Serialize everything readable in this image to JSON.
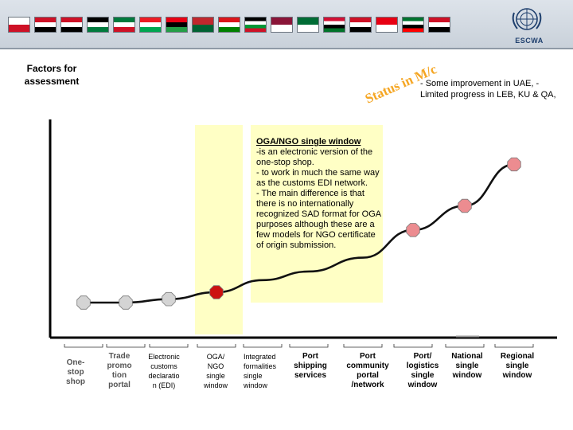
{
  "header": {
    "org_name": "ESCWA",
    "flags": [
      {
        "name": "bahrain",
        "colors": [
          "#ffffff",
          "#ce1126"
        ]
      },
      {
        "name": "egypt",
        "colors": [
          "#ce1126",
          "#ffffff",
          "#000000"
        ]
      },
      {
        "name": "iraq",
        "colors": [
          "#ce1126",
          "#ffffff",
          "#000000"
        ]
      },
      {
        "name": "jordan",
        "colors": [
          "#000000",
          "#ffffff",
          "#007a3d"
        ]
      },
      {
        "name": "kuwait",
        "colors": [
          "#007a3d",
          "#ffffff",
          "#ce1126"
        ]
      },
      {
        "name": "lebanon",
        "colors": [
          "#ed1c24",
          "#ffffff",
          "#00a651"
        ]
      },
      {
        "name": "libya",
        "colors": [
          "#e70013",
          "#000000",
          "#239e46"
        ]
      },
      {
        "name": "morocco",
        "colors": [
          "#c1272d",
          "#006233"
        ]
      },
      {
        "name": "oman",
        "colors": [
          "#db161b",
          "#ffffff",
          "#008000"
        ]
      },
      {
        "name": "palestine",
        "colors": [
          "#000000",
          "#ffffff",
          "#009736",
          "#ce1126"
        ]
      },
      {
        "name": "qatar",
        "colors": [
          "#8a1538",
          "#ffffff"
        ]
      },
      {
        "name": "saudi-arabia",
        "colors": [
          "#006c35",
          "#ffffff"
        ]
      },
      {
        "name": "sudan",
        "colors": [
          "#d21034",
          "#ffffff",
          "#000000",
          "#007229"
        ]
      },
      {
        "name": "syria",
        "colors": [
          "#ce1126",
          "#ffffff",
          "#000000"
        ]
      },
      {
        "name": "tunisia",
        "colors": [
          "#e70013",
          "#ffffff"
        ]
      },
      {
        "name": "uae",
        "colors": [
          "#00732f",
          "#ffffff",
          "#000000",
          "#ff0000"
        ]
      },
      {
        "name": "yemen",
        "colors": [
          "#ce1126",
          "#ffffff",
          "#000000"
        ]
      }
    ]
  },
  "labels": {
    "factors_line1": "Factors for",
    "factors_line2": "assessment",
    "status": "Status in M/c",
    "status_color": "#f5a623",
    "improvement": "- Some improvement in UAE, - Limited progress in LEB, KU & QA,"
  },
  "ngo": {
    "title": "OGA/NGO single window",
    "body": "-is an electronic version of the one-stop shop.\n- to work in much the same way as the customs EDI network.\n- The main difference is that there is no internationally recognized SAD format for OGA purposes although these are a few models for NGO certificate of origin submission."
  },
  "chart_data": {
    "type": "line",
    "categories": [
      "One-stop shop",
      "Trade promotion portal",
      "Electronic customs declaration (EDI)",
      "OGA/ NGO single window",
      "Integrated formalities single window",
      "Port shipping services",
      "Port community portal /network",
      "Port/ logistics single window",
      "National single window",
      "Regional single window"
    ],
    "category_lines": [
      [
        "One-",
        "stop",
        "shop"
      ],
      [
        "Trade",
        "promo",
        "tion",
        "portal"
      ],
      [
        "Electronic",
        "customs",
        "declaratio",
        "n (EDI)"
      ],
      [
        "OGA/",
        "NGO",
        "single",
        "window"
      ],
      [
        "Integrated",
        "formalities",
        "single",
        "window"
      ],
      [
        "Port",
        "shipping",
        "services"
      ],
      [
        "Port",
        "community",
        "portal",
        "/network"
      ],
      [
        "Port/",
        "logistics",
        "single",
        "window"
      ],
      [
        "National",
        "single",
        "window"
      ],
      [
        "Regional",
        "single",
        "window"
      ]
    ],
    "marker_points": [
      {
        "category": 0,
        "level": 1.0,
        "color": "#d4d4d4"
      },
      {
        "category": 1,
        "level": 1.0,
        "color": "#d4d4d4"
      },
      {
        "category": 2,
        "level": 1.2,
        "color": "#d4d4d4"
      },
      {
        "category": 3,
        "level": 1.6,
        "color": "#cc1111"
      },
      {
        "category": 7,
        "level": 5.2,
        "color": "#ec8c90"
      },
      {
        "category": 8,
        "level": 6.6,
        "color": "#ec8c90"
      },
      {
        "category": 9,
        "level": 9.0,
        "color": "#ec8c90"
      }
    ],
    "curve_levels": [
      1.0,
      1.0,
      1.2,
      1.6,
      2.3,
      2.8,
      3.6,
      5.2,
      6.6,
      9.0
    ],
    "ylim": [
      0,
      10
    ],
    "axis_color": "#000000",
    "curve_color": "#111111",
    "highlight_category": 3,
    "highlight_color": "#ffffc5"
  }
}
